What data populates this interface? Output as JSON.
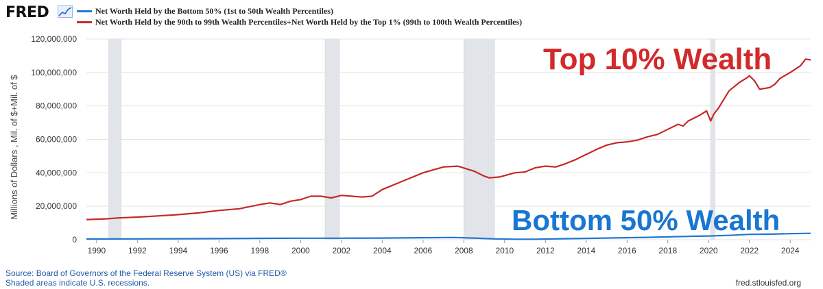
{
  "header": {
    "logo_text": "FRED",
    "logo_icon": "line-chart-icon"
  },
  "legend": [
    {
      "label": "Net Worth Held by the Bottom 50% (1st to 50th Wealth Percentiles)",
      "color": "#1f77d4"
    },
    {
      "label": "Net Worth Held by the 90th to 99th Wealth Percentiles+Net Worth Held by the Top 1% (99th to 100th Wealth Percentiles)",
      "color": "#c62828"
    }
  ],
  "annotations": {
    "top": "Top 10% Wealth",
    "bottom": "Bottom 50% Wealth"
  },
  "footer": {
    "source": "Source: Board of Governors of the Federal Reserve System (US) via FRED®",
    "recessions": "Shaded areas indicate U.S. recessions.",
    "site": "fred.stlouisfed.org"
  },
  "chart_data": {
    "type": "line",
    "ylabel": "Millions of Dollars , Mil. of $+Mil. of $",
    "xlim": [
      1989.5,
      2025.0
    ],
    "ylim": [
      0,
      120000000
    ],
    "yticks": [
      0,
      20000000,
      40000000,
      60000000,
      80000000,
      100000000,
      120000000
    ],
    "ytick_labels": [
      "0",
      "20,000,000",
      "40,000,000",
      "60,000,000",
      "80,000,000",
      "100,000,000",
      "120,000,000"
    ],
    "xticks": [
      1990,
      1992,
      1994,
      1996,
      1998,
      2000,
      2002,
      2004,
      2006,
      2008,
      2010,
      2012,
      2014,
      2016,
      2018,
      2020,
      2022,
      2024
    ],
    "xtick_labels": [
      "1990",
      "1992",
      "1994",
      "1996",
      "1998",
      "2000",
      "2002",
      "2004",
      "2006",
      "2008",
      "2010",
      "2012",
      "2014",
      "2016",
      "2018",
      "2020",
      "2022",
      "2024"
    ],
    "grid": true,
    "recessions": [
      [
        1990.6,
        1991.2
      ],
      [
        2001.2,
        2001.9
      ],
      [
        2008.0,
        2009.5
      ],
      [
        2020.1,
        2020.3
      ]
    ],
    "series": [
      {
        "name": "Net Worth Held by the 90th to 99th Wealth Percentiles+Net Worth Held by the Top 1% (99th to 100th Wealth Percentiles)",
        "color": "#c62828",
        "x": [
          1989.5,
          1990.5,
          1991.0,
          1992.0,
          1993.0,
          1994.0,
          1995.0,
          1996.0,
          1997.0,
          1998.0,
          1998.5,
          1999.0,
          1999.5,
          2000.0,
          2000.5,
          2001.0,
          2001.5,
          2002.0,
          2002.5,
          2003.0,
          2003.5,
          2004.0,
          2005.0,
          2006.0,
          2007.0,
          2007.7,
          2008.5,
          2009.0,
          2009.25,
          2009.75,
          2010.5,
          2011.0,
          2011.5,
          2012.0,
          2012.5,
          2013.0,
          2013.5,
          2014.0,
          2014.5,
          2015.0,
          2015.5,
          2016.0,
          2016.5,
          2017.0,
          2017.5,
          2018.0,
          2018.5,
          2018.75,
          2019.0,
          2019.5,
          2019.9,
          2020.1,
          2020.25,
          2020.5,
          2021.0,
          2021.5,
          2021.9,
          2022.0,
          2022.25,
          2022.5,
          2023.0,
          2023.25,
          2023.5,
          2024.0,
          2024.5,
          2024.75,
          2025.0
        ],
        "values": [
          12000000,
          12500000,
          13000000,
          13500000,
          14200000,
          15000000,
          16000000,
          17500000,
          18500000,
          21000000,
          22000000,
          21000000,
          23000000,
          24000000,
          26000000,
          26000000,
          25000000,
          26500000,
          26000000,
          25500000,
          26000000,
          30000000,
          35000000,
          40000000,
          43500000,
          44000000,
          41000000,
          38000000,
          37000000,
          37500000,
          40000000,
          40500000,
          43000000,
          44000000,
          43500000,
          45500000,
          48000000,
          51000000,
          54000000,
          56500000,
          58000000,
          58500000,
          59500000,
          61500000,
          63000000,
          66000000,
          69000000,
          68000000,
          71000000,
          74000000,
          77000000,
          71000000,
          75000000,
          79000000,
          89000000,
          94000000,
          97000000,
          98000000,
          95000000,
          90000000,
          91000000,
          93000000,
          96500000,
          100000000,
          104000000,
          108000000,
          107500000
        ]
      },
      {
        "name": "Net Worth Held by the Bottom 50% (1st to 50th Wealth Percentiles)",
        "color": "#1f77d4",
        "x": [
          1989.5,
          1992.0,
          1995.0,
          1998.0,
          2000.0,
          2002.0,
          2004.0,
          2006.0,
          2007.5,
          2008.5,
          2009.5,
          2010.5,
          2011.5,
          2013.0,
          2015.0,
          2017.0,
          2019.0,
          2020.0,
          2021.0,
          2022.0,
          2023.0,
          2024.0,
          2025.0
        ],
        "values": [
          400000,
          500000,
          600000,
          800000,
          900000,
          900000,
          1000000,
          1200000,
          1300000,
          1000000,
          500000,
          300000,
          300000,
          600000,
          1000000,
          1400000,
          2000000,
          2200000,
          2600000,
          3200000,
          3300000,
          3600000,
          3800000
        ]
      }
    ]
  }
}
